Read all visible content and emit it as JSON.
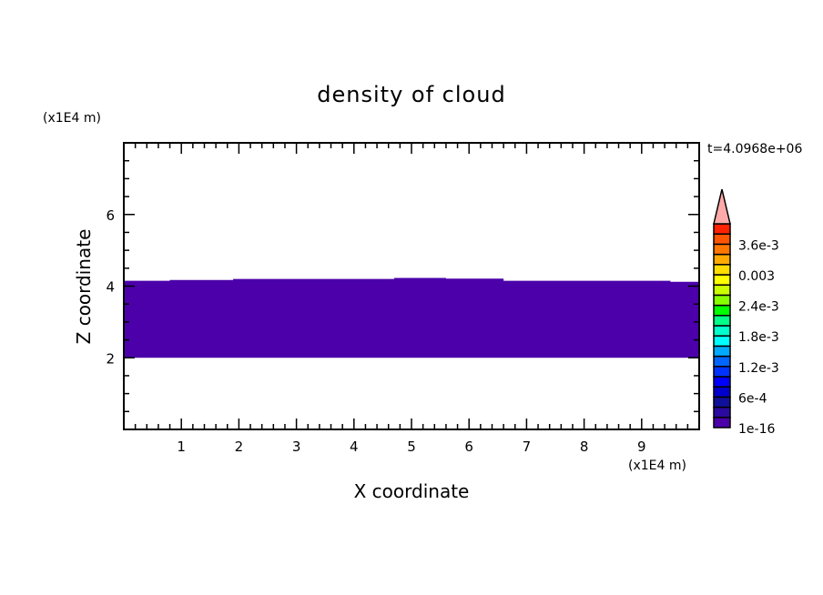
{
  "chart_data": {
    "type": "heatmap",
    "title": "density of cloud",
    "xlabel": "X coordinate",
    "ylabel": "Z coordinate",
    "x_unit": "(x1E4 m)",
    "y_unit": "(x1E4 m)",
    "time_label": "t=4.0968e+06",
    "xlim": [
      0,
      10
    ],
    "ylim": [
      0,
      8
    ],
    "x_ticks": [
      1,
      2,
      3,
      4,
      5,
      6,
      7,
      8,
      9
    ],
    "y_ticks": [
      2,
      4,
      6
    ],
    "grid": false,
    "cloud_band": {
      "color": "#4b00aa",
      "level": "1e-16",
      "bottom_z": 2.0,
      "top_profile": [
        [
          0,
          4.15
        ],
        [
          0.8,
          4.15
        ],
        [
          0.8,
          4.17
        ],
        [
          1.9,
          4.17
        ],
        [
          1.9,
          4.2
        ],
        [
          4.7,
          4.2
        ],
        [
          4.7,
          4.23
        ],
        [
          5.6,
          4.23
        ],
        [
          5.6,
          4.21
        ],
        [
          6.6,
          4.21
        ],
        [
          6.6,
          4.15
        ],
        [
          9.5,
          4.15
        ],
        [
          9.5,
          4.12
        ],
        [
          10,
          4.12
        ]
      ]
    },
    "colorbar": {
      "levels_min": 1e-16,
      "levels_max": 0.004,
      "colors": [
        "#4b00aa",
        "#2a0aa0",
        "#10109a",
        "#0000cc",
        "#0000ff",
        "#0033ff",
        "#0066ff",
        "#00aaff",
        "#00ffff",
        "#00ffcc",
        "#00ff88",
        "#00ff00",
        "#88ff00",
        "#ccff00",
        "#ffff00",
        "#ffdd00",
        "#ffaa00",
        "#ff7700",
        "#ff5500",
        "#ff2200",
        "#ff2a2a"
      ],
      "extend_color": "#ffaaaa",
      "tick_labels": [
        {
          "level": 0,
          "label": "1e-16"
        },
        {
          "level": 3,
          "label": "6e-4"
        },
        {
          "level": 6,
          "label": "1.2e-3"
        },
        {
          "level": 9,
          "label": "1.8e-3"
        },
        {
          "level": 12,
          "label": "2.4e-3"
        },
        {
          "level": 15,
          "label": "0.003"
        },
        {
          "level": 18,
          "label": "3.6e-3"
        }
      ]
    }
  }
}
